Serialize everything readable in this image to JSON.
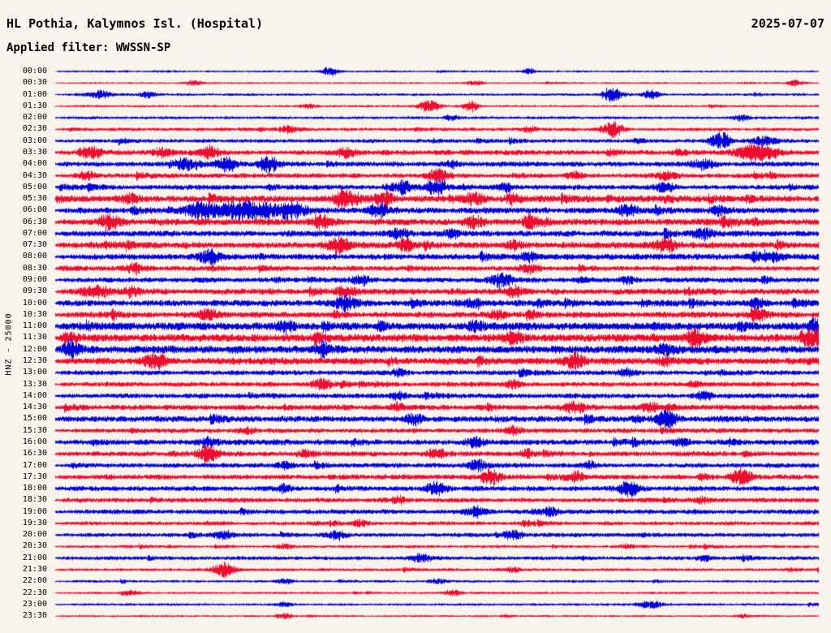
{
  "header": {
    "title": "HL Pothia, Kalymnos Isl. (Hospital)",
    "date": "2025-07-07",
    "filter_label": "Applied filter: WWSSN-SP"
  },
  "axis": {
    "channel_label": "HNZ - 25000"
  },
  "colors": {
    "trace_blue": "#0000dd",
    "trace_red": "#ee0c2f",
    "background": "#f9f5ec",
    "text": "#000000"
  },
  "chart_data": {
    "type": "line",
    "subtype": "helicorder-day-plot",
    "station": "HL Pothia, Kalymnos Isl. (Hospital)",
    "date": "2025-07-07",
    "filter": "WWSSN-SP",
    "channel": "HNZ",
    "scale": "25000",
    "minutes_per_line": 30,
    "line_color_pattern": [
      "blue",
      "red"
    ],
    "rows": [
      {
        "t": "00:00",
        "color": "blue",
        "amp": 0.25,
        "bursts": [
          [
            0.36,
            0.01,
            1.2
          ],
          [
            0.62,
            0.008,
            0.8
          ]
        ]
      },
      {
        "t": "00:30",
        "color": "red",
        "amp": 0.22,
        "bursts": [
          [
            0.18,
            0.01,
            0.7
          ],
          [
            0.55,
            0.01,
            0.6
          ],
          [
            0.97,
            0.01,
            0.9
          ]
        ]
      },
      {
        "t": "01:00",
        "color": "blue",
        "amp": 0.3,
        "bursts": [
          [
            0.06,
            0.015,
            1.0
          ],
          [
            0.12,
            0.01,
            0.8
          ],
          [
            0.73,
            0.012,
            2.2
          ],
          [
            0.78,
            0.01,
            1.2
          ]
        ]
      },
      {
        "t": "01:30",
        "color": "red",
        "amp": 0.28,
        "bursts": [
          [
            0.33,
            0.01,
            0.7
          ],
          [
            0.49,
            0.012,
            2.0
          ],
          [
            0.545,
            0.01,
            1.4
          ]
        ]
      },
      {
        "t": "02:00",
        "color": "blue",
        "amp": 0.35,
        "bursts": [
          [
            0.52,
            0.01,
            0.6
          ],
          [
            0.9,
            0.01,
            0.7
          ]
        ]
      },
      {
        "t": "02:30",
        "color": "red",
        "amp": 0.4,
        "bursts": [
          [
            0.305,
            0.012,
            0.9
          ],
          [
            0.62,
            0.01,
            0.8
          ],
          [
            0.73,
            0.013,
            2.2
          ]
        ]
      },
      {
        "t": "03:00",
        "color": "blue",
        "amp": 0.45,
        "bursts": [
          [
            0.87,
            0.012,
            2.2
          ],
          [
            0.93,
            0.015,
            1.2
          ]
        ]
      },
      {
        "t": "03:30",
        "color": "red",
        "amp": 0.6,
        "bursts": [
          [
            0.05,
            0.012,
            1.3
          ],
          [
            0.14,
            0.015,
            1.1
          ],
          [
            0.2,
            0.012,
            1.2
          ],
          [
            0.38,
            0.015,
            1.0
          ],
          [
            0.92,
            0.025,
            2.4
          ]
        ]
      },
      {
        "t": "04:00",
        "color": "blue",
        "amp": 0.6,
        "bursts": [
          [
            0.17,
            0.012,
            1.5
          ],
          [
            0.225,
            0.012,
            2.2
          ],
          [
            0.28,
            0.012,
            2.0
          ],
          [
            0.52,
            0.01,
            1.0
          ],
          [
            0.85,
            0.015,
            1.2
          ]
        ]
      },
      {
        "t": "04:30",
        "color": "red",
        "amp": 0.55,
        "bursts": [
          [
            0.04,
            0.01,
            1.2
          ],
          [
            0.5,
            0.015,
            1.5
          ],
          [
            0.68,
            0.01,
            0.9
          ],
          [
            0.8,
            0.012,
            1.1
          ]
        ]
      },
      {
        "t": "05:00",
        "color": "blue",
        "amp": 0.6,
        "bursts": [
          [
            0.455,
            0.012,
            1.6
          ],
          [
            0.5,
            0.013,
            2.4
          ],
          [
            0.59,
            0.01,
            1.1
          ],
          [
            0.8,
            0.012,
            1.3
          ]
        ]
      },
      {
        "t": "05:30",
        "color": "red",
        "amp": 0.75,
        "bursts": [
          [
            0.1,
            0.012,
            1.2
          ],
          [
            0.38,
            0.014,
            2.3
          ],
          [
            0.43,
            0.012,
            1.8
          ],
          [
            0.55,
            0.012,
            1.4
          ],
          [
            0.6,
            0.01,
            1.2
          ]
        ]
      },
      {
        "t": "06:00",
        "color": "blue",
        "amp": 0.7,
        "bursts": [
          [
            0.19,
            0.02,
            2.2
          ],
          [
            0.25,
            0.035,
            2.8
          ],
          [
            0.31,
            0.02,
            2.0
          ],
          [
            0.42,
            0.012,
            1.2
          ],
          [
            0.75,
            0.012,
            1.6
          ],
          [
            0.87,
            0.012,
            1.2
          ]
        ]
      },
      {
        "t": "06:30",
        "color": "red",
        "amp": 0.75,
        "bursts": [
          [
            0.07,
            0.013,
            2.0
          ],
          [
            0.35,
            0.012,
            1.2
          ],
          [
            0.55,
            0.013,
            1.5
          ],
          [
            0.62,
            0.01,
            1.2
          ],
          [
            0.88,
            0.012,
            1.4
          ]
        ]
      },
      {
        "t": "07:00",
        "color": "blue",
        "amp": 0.7,
        "bursts": [
          [
            0.45,
            0.012,
            1.3
          ],
          [
            0.52,
            0.01,
            1.1
          ],
          [
            0.85,
            0.012,
            1.2
          ]
        ]
      },
      {
        "t": "07:30",
        "color": "red",
        "amp": 0.75,
        "bursts": [
          [
            0.37,
            0.015,
            2.2
          ],
          [
            0.46,
            0.01,
            1.2
          ],
          [
            0.6,
            0.01,
            1.1
          ],
          [
            0.8,
            0.013,
            1.8
          ]
        ]
      },
      {
        "t": "08:00",
        "color": "blue",
        "amp": 0.7,
        "bursts": [
          [
            0.2,
            0.013,
            1.6
          ],
          [
            0.62,
            0.012,
            1.2
          ],
          [
            0.92,
            0.01,
            1.0
          ]
        ]
      },
      {
        "t": "08:30",
        "color": "red",
        "amp": 0.6,
        "bursts": [
          [
            0.1,
            0.01,
            0.9
          ],
          [
            0.62,
            0.012,
            1.1
          ]
        ]
      },
      {
        "t": "09:00",
        "color": "blue",
        "amp": 0.6,
        "bursts": [
          [
            0.4,
            0.012,
            1.2
          ],
          [
            0.585,
            0.013,
            2.2
          ],
          [
            0.75,
            0.01,
            0.9
          ]
        ]
      },
      {
        "t": "09:30",
        "color": "red",
        "amp": 0.7,
        "bursts": [
          [
            0.05,
            0.015,
            1.4
          ],
          [
            0.1,
            0.012,
            1.2
          ],
          [
            0.38,
            0.012,
            1.3
          ],
          [
            0.6,
            0.01,
            1.0
          ]
        ]
      },
      {
        "t": "10:00",
        "color": "blue",
        "amp": 0.75,
        "bursts": [
          [
            0.38,
            0.013,
            1.8
          ],
          [
            0.55,
            0.01,
            1.0
          ],
          [
            0.92,
            0.01,
            1.1
          ]
        ]
      },
      {
        "t": "10:30",
        "color": "red",
        "amp": 0.7,
        "bursts": [
          [
            0.2,
            0.012,
            1.1
          ],
          [
            0.58,
            0.01,
            1.0
          ],
          [
            0.92,
            0.013,
            1.8
          ]
        ]
      },
      {
        "t": "11:00",
        "color": "blue",
        "amp": 0.9,
        "bursts": [
          [
            0.3,
            0.012,
            1.2
          ],
          [
            0.55,
            0.012,
            1.2
          ],
          [
            0.995,
            0.008,
            2.4
          ]
        ]
      },
      {
        "t": "11:30",
        "color": "red",
        "amp": 0.9,
        "bursts": [
          [
            0.02,
            0.01,
            1.4
          ],
          [
            0.6,
            0.012,
            1.2
          ],
          [
            0.84,
            0.012,
            2.6
          ],
          [
            0.995,
            0.01,
            2.6
          ]
        ]
      },
      {
        "t": "12:00",
        "color": "blue",
        "amp": 0.9,
        "bursts": [
          [
            0.02,
            0.012,
            2.0
          ],
          [
            0.35,
            0.01,
            1.1
          ],
          [
            0.8,
            0.012,
            1.3
          ]
        ]
      },
      {
        "t": "12:30",
        "color": "red",
        "amp": 0.8,
        "bursts": [
          [
            0.13,
            0.015,
            2.0
          ],
          [
            0.68,
            0.013,
            2.0
          ],
          [
            0.8,
            0.01,
            1.1
          ]
        ]
      },
      {
        "t": "13:00",
        "color": "blue",
        "amp": 0.6,
        "bursts": [
          [
            0.45,
            0.01,
            0.9
          ],
          [
            0.75,
            0.01,
            0.9
          ]
        ]
      },
      {
        "t": "13:30",
        "color": "red",
        "amp": 0.55,
        "bursts": [
          [
            0.35,
            0.013,
            1.4
          ],
          [
            0.6,
            0.01,
            0.9
          ]
        ]
      },
      {
        "t": "14:00",
        "color": "blue",
        "amp": 0.6,
        "bursts": [
          [
            0.45,
            0.01,
            1.0
          ],
          [
            0.85,
            0.01,
            1.2
          ]
        ]
      },
      {
        "t": "14:30",
        "color": "red",
        "amp": 0.65,
        "bursts": [
          [
            0.45,
            0.01,
            1.0
          ],
          [
            0.68,
            0.013,
            1.6
          ],
          [
            0.78,
            0.01,
            1.1
          ]
        ]
      },
      {
        "t": "15:00",
        "color": "blue",
        "amp": 0.7,
        "bursts": [
          [
            0.47,
            0.012,
            1.2
          ],
          [
            0.8,
            0.013,
            2.6
          ]
        ]
      },
      {
        "t": "15:30",
        "color": "red",
        "amp": 0.55,
        "bursts": [
          [
            0.25,
            0.01,
            0.9
          ],
          [
            0.6,
            0.01,
            0.9
          ]
        ]
      },
      {
        "t": "16:00",
        "color": "blue",
        "amp": 0.65,
        "bursts": [
          [
            0.2,
            0.012,
            1.1
          ],
          [
            0.55,
            0.012,
            1.3
          ],
          [
            0.82,
            0.01,
            1.0
          ]
        ]
      },
      {
        "t": "16:30",
        "color": "red",
        "amp": 0.6,
        "bursts": [
          [
            0.2,
            0.012,
            2.6
          ],
          [
            0.33,
            0.01,
            1.0
          ],
          [
            0.5,
            0.012,
            1.3
          ],
          [
            0.62,
            0.01,
            1.0
          ]
        ]
      },
      {
        "t": "17:00",
        "color": "blue",
        "amp": 0.55,
        "bursts": [
          [
            0.3,
            0.01,
            0.9
          ],
          [
            0.55,
            0.012,
            1.2
          ],
          [
            0.7,
            0.01,
            1.0
          ]
        ]
      },
      {
        "t": "17:30",
        "color": "red",
        "amp": 0.6,
        "bursts": [
          [
            0.57,
            0.013,
            1.9
          ],
          [
            0.68,
            0.012,
            1.4
          ],
          [
            0.9,
            0.013,
            2.2
          ]
        ]
      },
      {
        "t": "18:00",
        "color": "blue",
        "amp": 0.6,
        "bursts": [
          [
            0.3,
            0.01,
            0.9
          ],
          [
            0.5,
            0.013,
            1.7
          ],
          [
            0.75,
            0.015,
            1.8
          ]
        ]
      },
      {
        "t": "18:30",
        "color": "red",
        "amp": 0.55,
        "bursts": [
          [
            0.45,
            0.01,
            0.9
          ],
          [
            0.85,
            0.01,
            0.9
          ]
        ]
      },
      {
        "t": "19:00",
        "color": "blue",
        "amp": 0.55,
        "bursts": [
          [
            0.55,
            0.012,
            1.3
          ],
          [
            0.65,
            0.01,
            1.0
          ]
        ]
      },
      {
        "t": "19:30",
        "color": "red",
        "amp": 0.45,
        "bursts": [
          [
            0.4,
            0.01,
            0.8
          ],
          [
            0.62,
            0.01,
            0.8
          ]
        ]
      },
      {
        "t": "20:00",
        "color": "blue",
        "amp": 0.5,
        "bursts": [
          [
            0.22,
            0.012,
            1.1
          ],
          [
            0.37,
            0.012,
            1.1
          ],
          [
            0.6,
            0.012,
            1.1
          ]
        ]
      },
      {
        "t": "20:30",
        "color": "red",
        "amp": 0.35,
        "bursts": [
          [
            0.3,
            0.01,
            0.6
          ],
          [
            0.75,
            0.01,
            0.6
          ]
        ]
      },
      {
        "t": "21:00",
        "color": "blue",
        "amp": 0.45,
        "bursts": [
          [
            0.48,
            0.012,
            1.2
          ],
          [
            0.85,
            0.01,
            0.8
          ]
        ]
      },
      {
        "t": "21:30",
        "color": "red",
        "amp": 0.35,
        "bursts": [
          [
            0.22,
            0.013,
            1.8
          ],
          [
            0.6,
            0.01,
            0.6
          ]
        ]
      },
      {
        "t": "22:00",
        "color": "blue",
        "amp": 0.3,
        "bursts": [
          [
            0.3,
            0.01,
            0.8
          ],
          [
            0.5,
            0.01,
            0.6
          ]
        ]
      },
      {
        "t": "22:30",
        "color": "red",
        "amp": 0.28,
        "bursts": [
          [
            0.1,
            0.01,
            0.5
          ],
          [
            0.52,
            0.01,
            0.9
          ]
        ]
      },
      {
        "t": "23:00",
        "color": "blue",
        "amp": 0.3,
        "bursts": [
          [
            0.3,
            0.01,
            0.6
          ],
          [
            0.78,
            0.015,
            1.1
          ]
        ]
      },
      {
        "t": "23:30",
        "color": "red",
        "amp": 0.25,
        "bursts": [
          [
            0.3,
            0.01,
            0.7
          ],
          [
            0.9,
            0.01,
            0.5
          ]
        ]
      }
    ]
  }
}
